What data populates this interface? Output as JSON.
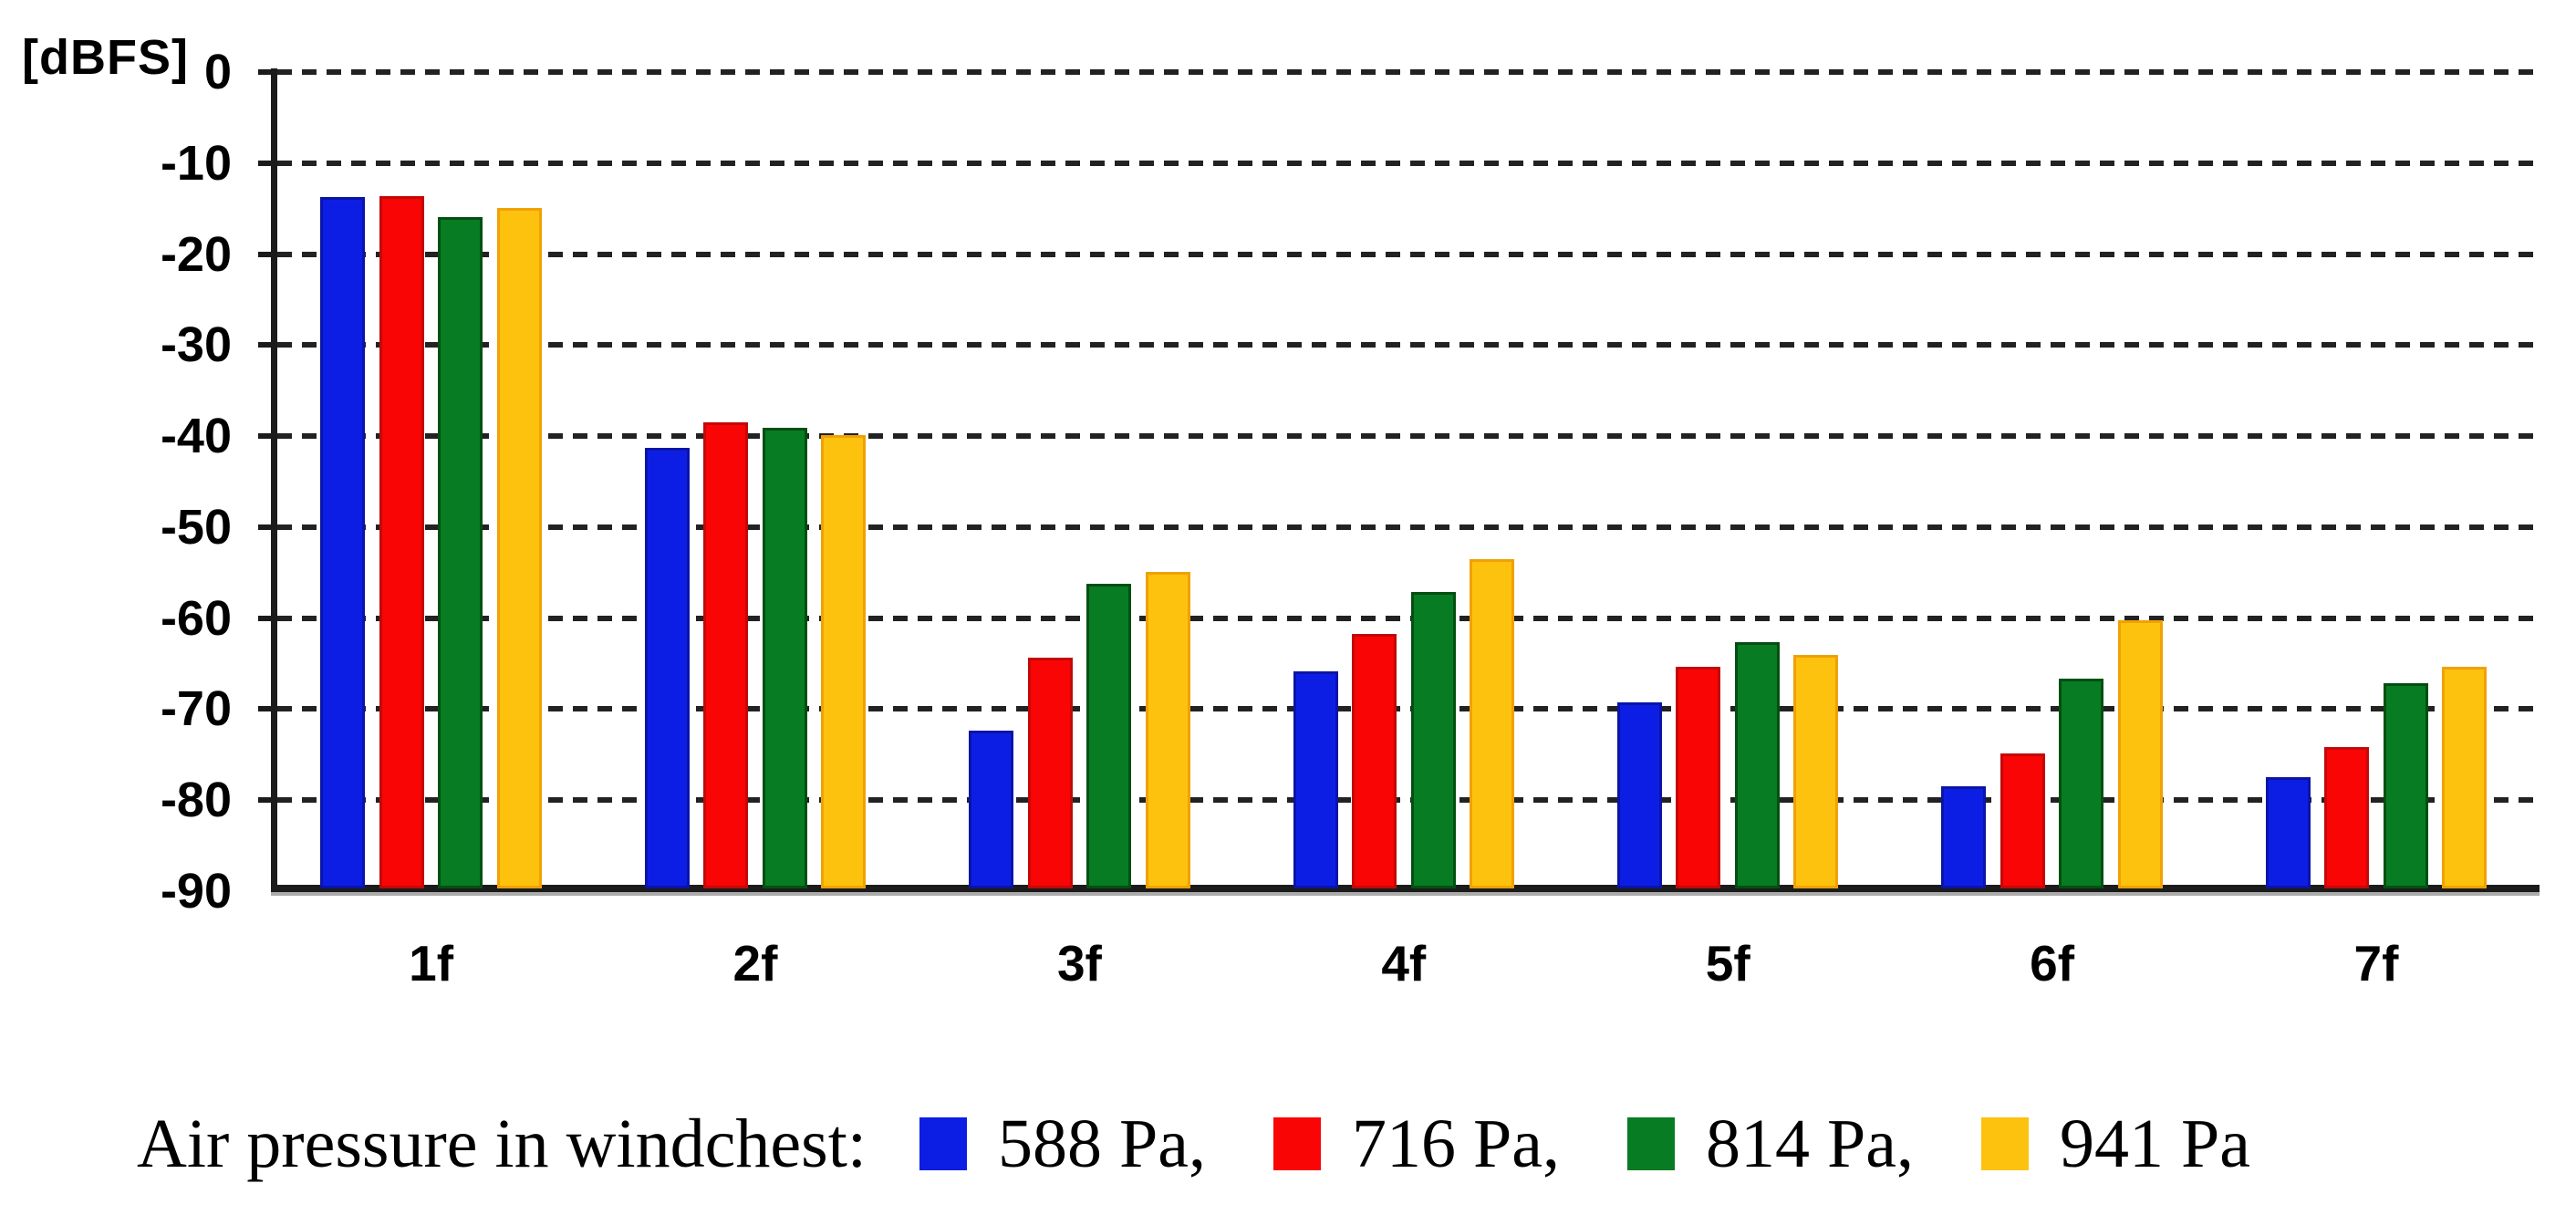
{
  "unit_label": "[dBFS]",
  "chart_data": {
    "type": "bar",
    "title": "",
    "xlabel": "",
    "ylabel": "[dBFS]",
    "ylim": [
      -90,
      0
    ],
    "ytick_step": 10,
    "yticks": [
      "0",
      "-10",
      "-20",
      "-30",
      "-40",
      "-50",
      "-60",
      "-70",
      "-80",
      "-90"
    ],
    "grid": "horizontal-dashed",
    "legend_position": "bottom",
    "categories": [
      "1f",
      "2f",
      "3f",
      "4f",
      "5f",
      "6f",
      "7f"
    ],
    "series": [
      {
        "name": "588 Pa",
        "color": "#0D1EE4",
        "border_color": "#0A14A8",
        "values": [
          -13.7,
          -41.3,
          -72.4,
          -65.8,
          -69.3,
          -78.5,
          -77.5
        ]
      },
      {
        "name": "716 Pa",
        "color": "#F90505",
        "border_color": "#C40808",
        "values": [
          -13.6,
          -38.5,
          -64.3,
          -61.7,
          -65.3,
          -74.9,
          -74.2
        ]
      },
      {
        "name": "814 Pa",
        "color": "#077C23",
        "border_color": "#034F12",
        "values": [
          -15.9,
          -39.1,
          -56.2,
          -57.1,
          -62.6,
          -66.6,
          -67.1
        ]
      },
      {
        "name": "941 Pa",
        "color": "#FDC20D",
        "border_color": "#F0A105",
        "values": [
          -14.9,
          -39.9,
          -54.9,
          -53.5,
          -64.0,
          -60.2,
          -65.3
        ]
      }
    ]
  },
  "legend": {
    "prefix": "Air pressure in windchest:",
    "items": [
      {
        "label": "588 Pa,",
        "color": "#0D1EE4"
      },
      {
        "label": "716 Pa,",
        "color": "#F90505"
      },
      {
        "label": "814 Pa,",
        "color": "#077C23"
      },
      {
        "label": "941 Pa",
        "color": "#FDC20D"
      }
    ]
  }
}
